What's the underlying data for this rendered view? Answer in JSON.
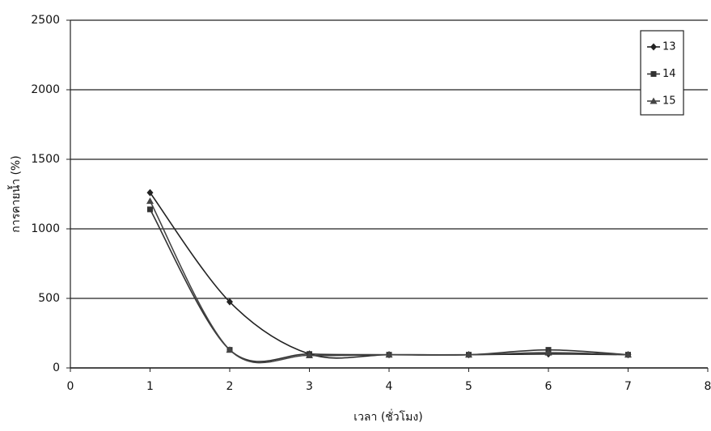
{
  "chart_data": {
    "type": "line",
    "x_label": "เวลา (ชั่วโมง)",
    "y_label": "การคายน้ำ (%)",
    "x": [
      1,
      2,
      3,
      4,
      5,
      6,
      7
    ],
    "series": [
      {
        "name": "13",
        "color": "#222222",
        "marker": "diamond",
        "values": [
          1260,
          475,
          100,
          95,
          95,
          100,
          95
        ]
      },
      {
        "name": "14",
        "color": "#333333",
        "marker": "square",
        "values": [
          1140,
          130,
          100,
          95,
          95,
          130,
          95
        ]
      },
      {
        "name": "15",
        "color": "#444444",
        "marker": "triangle",
        "values": [
          1200,
          130,
          90,
          95,
          95,
          110,
          95
        ]
      }
    ],
    "xlim": [
      0,
      8
    ],
    "xticks": [
      0,
      1,
      2,
      3,
      4,
      5,
      6,
      7,
      8
    ],
    "ylim": [
      0,
      2500
    ],
    "yticks": [
      0,
      500,
      1000,
      1500,
      2000,
      2500
    ],
    "grid": true,
    "smooth": true,
    "legend": "top-right"
  }
}
